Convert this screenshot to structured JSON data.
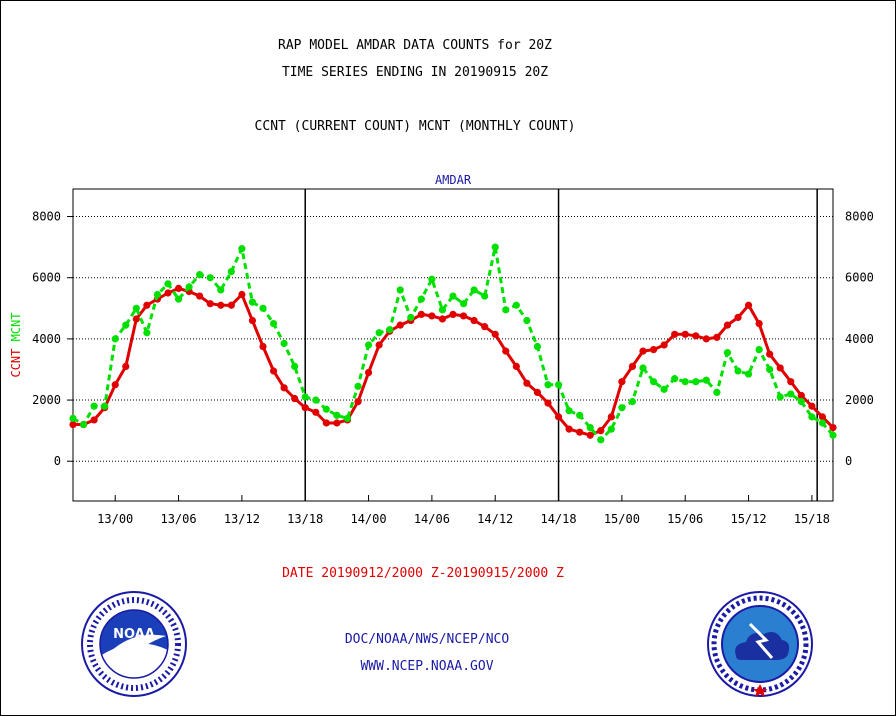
{
  "titles": {
    "line1": "RAP MODEL AMDAR DATA COUNTS for 20Z",
    "line2": "TIME SERIES ENDING IN 20190915 20Z",
    "line3": "CCNT (CURRENT COUNT) MCNT (MONTHLY COUNT)"
  },
  "date_range": "DATE 20190912/2000 Z-20190915/2000 Z",
  "footer": {
    "org": "DOC/NOAA/NWS/NCEP/NCO",
    "url": "WWW.NCEP.NOAA.GOV"
  },
  "logos": {
    "left": "noaa-logo",
    "right": "nws-logo"
  },
  "colors": {
    "ccnt": "#e00000",
    "mcnt": "#00e000",
    "amdar": "#1a1aa6"
  },
  "chart_data": {
    "type": "line",
    "title": "AMDAR",
    "ylabel_parts": [
      "CCNT",
      "MCNT"
    ],
    "x_unit": "hours from 13/00",
    "xlim": [
      -4,
      68
    ],
    "ylim": [
      -1300,
      8900
    ],
    "yticks": [
      0,
      2000,
      4000,
      6000,
      8000
    ],
    "xticks": [
      {
        "pos": 0,
        "label": "13/00"
      },
      {
        "pos": 6,
        "label": "13/06"
      },
      {
        "pos": 12,
        "label": "13/12"
      },
      {
        "pos": 18,
        "label": "13/18"
      },
      {
        "pos": 24,
        "label": "14/00"
      },
      {
        "pos": 30,
        "label": "14/06"
      },
      {
        "pos": 36,
        "label": "14/12"
      },
      {
        "pos": 42,
        "label": "14/18"
      },
      {
        "pos": 48,
        "label": "15/00"
      },
      {
        "pos": 54,
        "label": "15/06"
      },
      {
        "pos": 60,
        "label": "15/12"
      },
      {
        "pos": 66,
        "label": "15/18"
      }
    ],
    "day_boundaries": [
      18,
      42,
      66.5
    ],
    "grid": "horizontal dotted",
    "x": [
      -4,
      -3,
      -2,
      -1,
      0,
      1,
      2,
      3,
      4,
      5,
      6,
      7,
      8,
      9,
      10,
      11,
      12,
      13,
      14,
      15,
      16,
      17,
      18,
      19,
      20,
      21,
      22,
      23,
      24,
      25,
      26,
      27,
      28,
      29,
      30,
      31,
      32,
      33,
      34,
      35,
      36,
      37,
      38,
      39,
      40,
      41,
      42,
      43,
      44,
      45,
      46,
      47,
      48,
      49,
      50,
      51,
      52,
      53,
      54,
      55,
      56,
      57,
      58,
      59,
      60,
      61,
      62,
      63,
      64,
      65,
      66,
      67,
      68
    ],
    "series": [
      {
        "name": "CCNT",
        "values": [
          1200,
          1200,
          1350,
          1750,
          2500,
          3100,
          4650,
          5100,
          5300,
          5500,
          5650,
          5550,
          5400,
          5150,
          5100,
          5100,
          5450,
          4600,
          3750,
          2950,
          2400,
          2050,
          1750,
          1600,
          1250,
          1250,
          1350,
          1950,
          2900,
          3800,
          4250,
          4450,
          4600,
          4800,
          4750,
          4650,
          4800,
          4750,
          4600,
          4400,
          4150,
          3600,
          3100,
          2550,
          2250,
          1900,
          1450,
          1050,
          950,
          850,
          1000,
          1450,
          2600,
          3100,
          3600,
          3650,
          3800,
          4150,
          4150,
          4100,
          4000,
          4050,
          4450,
          4700,
          5100,
          4500,
          3500,
          3050,
          2600,
          2150,
          1800,
          1450,
          1100
        ]
      },
      {
        "name": "MCNT",
        "values": [
          1400,
          1200,
          1800,
          1800,
          4000,
          4450,
          5000,
          4200,
          5450,
          5800,
          5300,
          5700,
          6100,
          6000,
          5600,
          6200,
          6950,
          5200,
          5000,
          4500,
          3850,
          3100,
          2100,
          2000,
          1700,
          1500,
          1400,
          2450,
          3800,
          4200,
          4300,
          5600,
          4700,
          5300,
          5950,
          4950,
          5400,
          5150,
          5600,
          5400,
          7000,
          4950,
          5100,
          4600,
          3750,
          2500,
          2500,
          1650,
          1500,
          1100,
          700,
          1050,
          1750,
          1950,
          3050,
          2600,
          2350,
          2700,
          2600,
          2600,
          2650,
          2250,
          3550,
          2950,
          2850,
          3650,
          3000,
          2100,
          2200,
          1950,
          1450,
          1250,
          850
        ]
      }
    ]
  }
}
